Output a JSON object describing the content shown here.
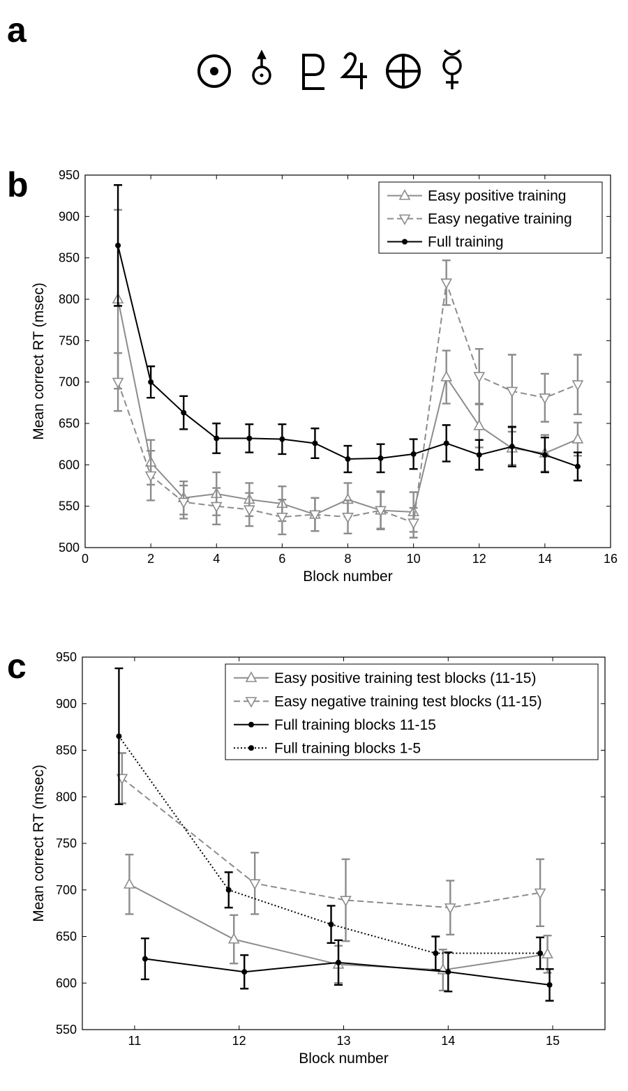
{
  "panel_labels": {
    "a": "a",
    "b": "b",
    "c": "c"
  },
  "symbols": [
    "sun-icon",
    "uranus-icon",
    "pluto-icon",
    "jupiter-icon",
    "earth-icon",
    "mercury-icon"
  ],
  "chart_data": [
    {
      "type": "line",
      "xlabel": "Block number",
      "ylabel": "Mean correct RT (msec)",
      "xlim": [
        0,
        16
      ],
      "ylim": [
        500,
        950
      ],
      "xticks": [
        0,
        2,
        4,
        6,
        8,
        10,
        12,
        14,
        16
      ],
      "yticks": [
        500,
        550,
        600,
        650,
        700,
        750,
        800,
        850,
        900,
        950
      ],
      "grid": false,
      "legend_position": "top-right",
      "series": [
        {
          "name": "Easy positive training",
          "color": "#8c8c8c",
          "dash": "solid",
          "marker": "triangle-up",
          "x": [
            1,
            2,
            3,
            4,
            5,
            6,
            7,
            8,
            9,
            10,
            11,
            12,
            13,
            14,
            15
          ],
          "y": [
            800,
            603,
            560,
            565,
            558,
            553,
            540,
            558,
            545,
            543,
            706,
            647,
            620,
            614,
            631
          ],
          "err": [
            108,
            27,
            20,
            26,
            20,
            21,
            20,
            20,
            23,
            24,
            32,
            26,
            20,
            22,
            20
          ]
        },
        {
          "name": "Easy negative training",
          "color": "#8c8c8c",
          "dash": "dashed",
          "marker": "triangle-down",
          "x": [
            1,
            2,
            3,
            4,
            5,
            6,
            7,
            8,
            9,
            10,
            11,
            12,
            13,
            14,
            15
          ],
          "y": [
            700,
            587,
            555,
            550,
            546,
            537,
            540,
            537,
            545,
            530,
            820,
            707,
            689,
            681,
            697
          ],
          "err": [
            35,
            30,
            20,
            22,
            20,
            21,
            20,
            20,
            22,
            18,
            27,
            33,
            44,
            29,
            36
          ]
        },
        {
          "name": "Full training",
          "color": "#000000",
          "dash": "solid",
          "marker": "dot",
          "x": [
            1,
            2,
            3,
            4,
            5,
            6,
            7,
            8,
            9,
            10,
            11,
            12,
            13,
            14,
            15
          ],
          "y": [
            865,
            700,
            663,
            632,
            632,
            631,
            626,
            607,
            608,
            613,
            626,
            612,
            622,
            612,
            598
          ],
          "err": [
            73,
            19,
            20,
            18,
            17,
            18,
            18,
            16,
            17,
            18,
            22,
            18,
            24,
            21,
            17
          ]
        }
      ]
    },
    {
      "type": "line",
      "xlabel": "Block number",
      "ylabel": "Mean correct RT (msec)",
      "xlim": [
        10.5,
        15.5
      ],
      "ylim": [
        550,
        950
      ],
      "xticks": [
        11,
        12,
        13,
        14,
        15
      ],
      "yticks": [
        550,
        600,
        650,
        700,
        750,
        800,
        850,
        900,
        950
      ],
      "grid": false,
      "legend_position": "top-right",
      "series": [
        {
          "name": "Easy positive training test blocks (11-15)",
          "color": "#8c8c8c",
          "dash": "solid",
          "marker": "triangle-up",
          "x": [
            10.95,
            11.95,
            12.95,
            13.95,
            14.95
          ],
          "y": [
            706,
            647,
            620,
            614,
            631
          ],
          "err": [
            32,
            26,
            20,
            22,
            20
          ]
        },
        {
          "name": "Easy negative training test blocks (11-15)",
          "color": "#8c8c8c",
          "dash": "dashed",
          "marker": "triangle-down",
          "x": [
            10.88,
            12.15,
            13.02,
            14.02,
            14.88
          ],
          "y": [
            820,
            707,
            689,
            681,
            697
          ],
          "err": [
            27,
            33,
            44,
            29,
            36
          ]
        },
        {
          "name": "Full training blocks 11-15",
          "color": "#000000",
          "dash": "solid",
          "marker": "dot",
          "x": [
            11.1,
            12.05,
            12.95,
            14.0,
            14.97
          ],
          "y": [
            626,
            612,
            622,
            612,
            598
          ],
          "err": [
            22,
            18,
            24,
            21,
            17
          ]
        },
        {
          "name": "Full training blocks 1-5",
          "color": "#000000",
          "dash": "dotted",
          "marker": "dot",
          "x": [
            10.85,
            11.9,
            12.88,
            13.88,
            14.88
          ],
          "y": [
            865,
            700,
            663,
            632,
            632
          ],
          "err": [
            73,
            19,
            20,
            18,
            17
          ]
        }
      ]
    }
  ]
}
